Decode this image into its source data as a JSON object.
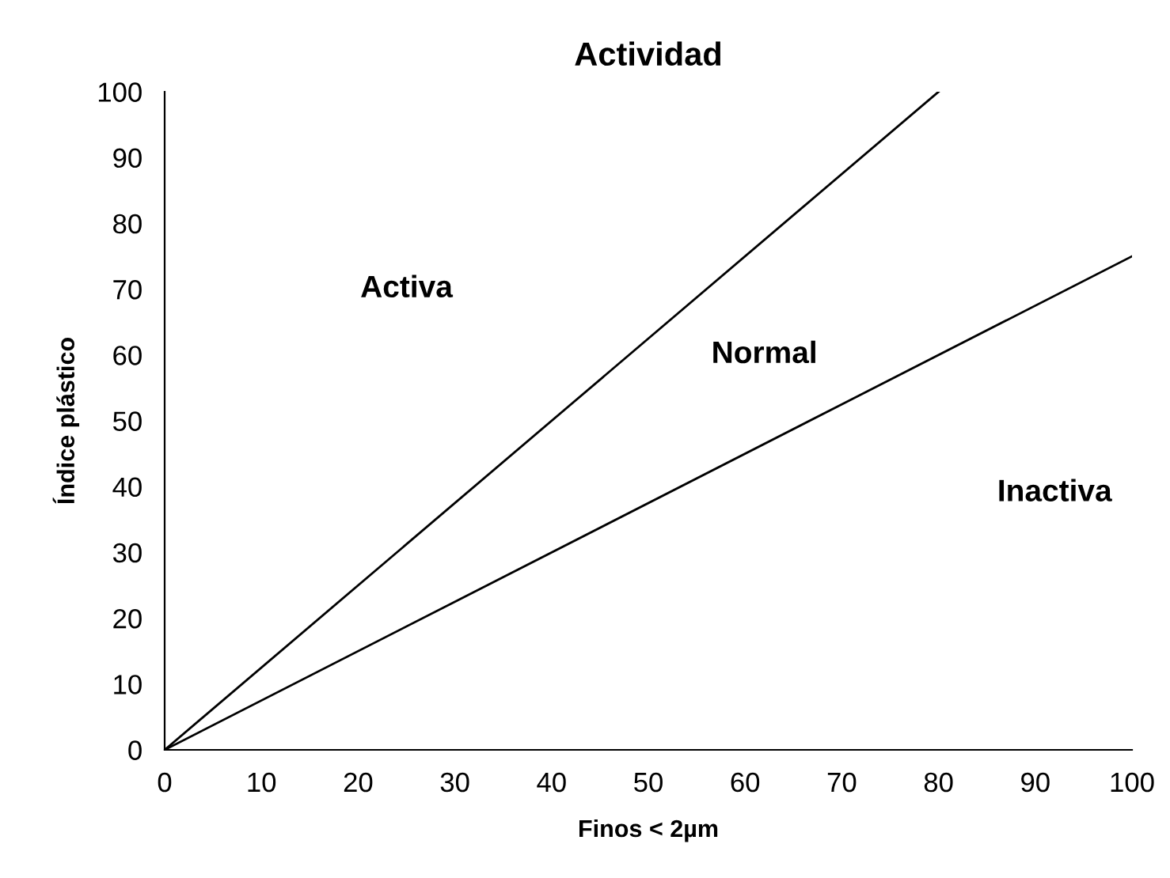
{
  "chart_data": {
    "type": "line",
    "title": "Actividad",
    "xlabel": "Finos < 2µm",
    "ylabel": "Índice plástico",
    "xlim": [
      0,
      100
    ],
    "xticks": [
      0,
      10,
      20,
      30,
      40,
      50,
      60,
      70,
      80,
      90,
      100
    ],
    "ylim": [
      0,
      100
    ],
    "yticks": [
      0,
      10,
      20,
      30,
      40,
      50,
      60,
      70,
      80,
      90,
      100
    ],
    "grid": false,
    "marker": "none",
    "line_style": "solid",
    "series": [
      {
        "color": "#000000",
        "x": [
          0,
          80
        ],
        "values": [
          0,
          100
        ]
      },
      {
        "color": "#000000",
        "x": [
          0,
          100
        ],
        "values": [
          0,
          75
        ]
      }
    ],
    "annotations": [
      "Activa",
      "Normal",
      "Inactiva"
    ]
  }
}
